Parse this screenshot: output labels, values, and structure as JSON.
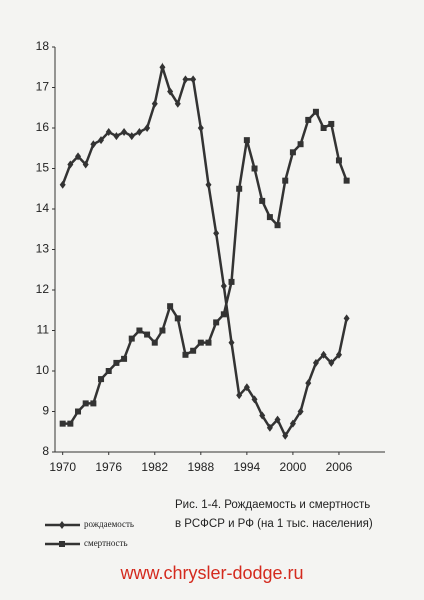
{
  "chart_data": {
    "type": "line",
    "x": [
      1970,
      1971,
      1972,
      1973,
      1974,
      1975,
      1976,
      1977,
      1978,
      1979,
      1980,
      1981,
      1982,
      1983,
      1984,
      1985,
      1986,
      1987,
      1988,
      1989,
      1990,
      1991,
      1992,
      1993,
      1994,
      1995,
      1996,
      1997,
      1998,
      1999,
      2000,
      2001,
      2002,
      2003,
      2004,
      2005,
      2006,
      2007
    ],
    "series": [
      {
        "name": "рождаемость",
        "color": "#333333",
        "marker": "diamond",
        "values": [
          14.6,
          15.1,
          15.3,
          15.1,
          15.6,
          15.7,
          15.9,
          15.8,
          15.9,
          15.8,
          15.9,
          16.0,
          16.6,
          17.5,
          16.9,
          16.6,
          17.2,
          17.2,
          16.0,
          14.6,
          13.4,
          12.1,
          10.7,
          9.4,
          9.6,
          9.3,
          8.9,
          8.6,
          8.8,
          8.4,
          8.7,
          9.0,
          9.7,
          10.2,
          10.4,
          10.2,
          10.4,
          11.3
        ]
      },
      {
        "name": "смертность",
        "color": "#333333",
        "marker": "square",
        "values": [
          8.7,
          8.7,
          9.0,
          9.2,
          9.2,
          9.8,
          10.0,
          10.2,
          10.3,
          10.8,
          11.0,
          10.9,
          10.7,
          11.0,
          11.6,
          11.3,
          10.4,
          10.5,
          10.7,
          10.7,
          11.2,
          11.4,
          12.2,
          14.5,
          15.7,
          15.0,
          14.2,
          13.8,
          13.6,
          14.7,
          15.4,
          15.6,
          16.2,
          16.4,
          16.0,
          16.1,
          15.2,
          14.7
        ]
      }
    ],
    "xlim": [
      1969,
      2012
    ],
    "xticks": [
      1970,
      1976,
      1982,
      1988,
      1994,
      2000,
      2006
    ],
    "ylim": [
      8,
      18
    ],
    "yticks": [
      8,
      9,
      10,
      11,
      12,
      13,
      14,
      15,
      16,
      17,
      18
    ],
    "grid": false,
    "legend": "bottom-left",
    "caption": [
      "Рис. 1-4. Рождаемость и смертность",
      "в РСФСР и РФ (на 1 тыс. населения)"
    ],
    "watermark": "www.chrysler-dodge.ru"
  }
}
